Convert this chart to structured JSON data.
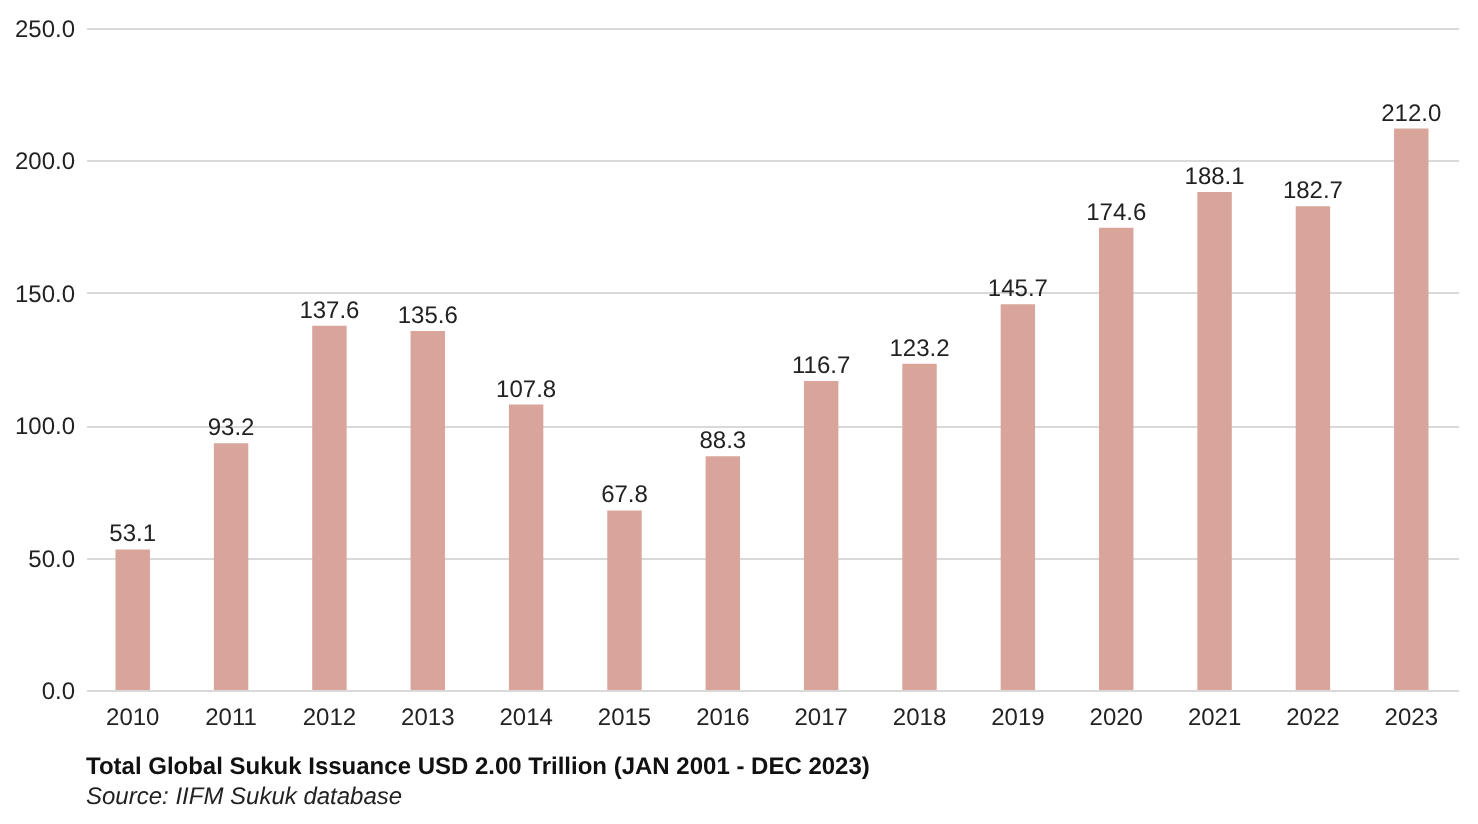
{
  "chart_data": {
    "type": "bar",
    "title": "Total Global Sukuk Issuance USD 2.00 Trillion (JAN 2001 - DEC 2023)",
    "annotations": [
      "Source: IIFM Sukuk database"
    ],
    "categories": [
      "2010",
      "2011",
      "2012",
      "2013",
      "2014",
      "2015",
      "2016",
      "2017",
      "2018",
      "2019",
      "2020",
      "2021",
      "2022",
      "2023"
    ],
    "values": [
      53.1,
      93.2,
      137.6,
      135.6,
      107.8,
      67.8,
      88.3,
      116.7,
      123.2,
      145.7,
      174.6,
      188.1,
      182.7,
      212.0
    ],
    "color": "#d9a59a",
    "ylim": [
      0,
      250
    ],
    "yticks": [
      {
        "value": 0,
        "label": "0.0"
      },
      {
        "value": 50,
        "label": "50.0"
      },
      {
        "value": 100,
        "label": "100.0"
      },
      {
        "value": 150,
        "label": "150.0"
      },
      {
        "value": 200,
        "label": "200.0"
      },
      {
        "value": 250,
        "label": "250.0"
      }
    ],
    "value_labels": [
      "53.1",
      "93.2",
      "137.6",
      "135.6",
      "107.8",
      "67.8",
      "88.3",
      "116.7",
      "123.2",
      "145.7",
      "174.6",
      "188.1",
      "182.7",
      "212.0"
    ],
    "grid": "y"
  }
}
